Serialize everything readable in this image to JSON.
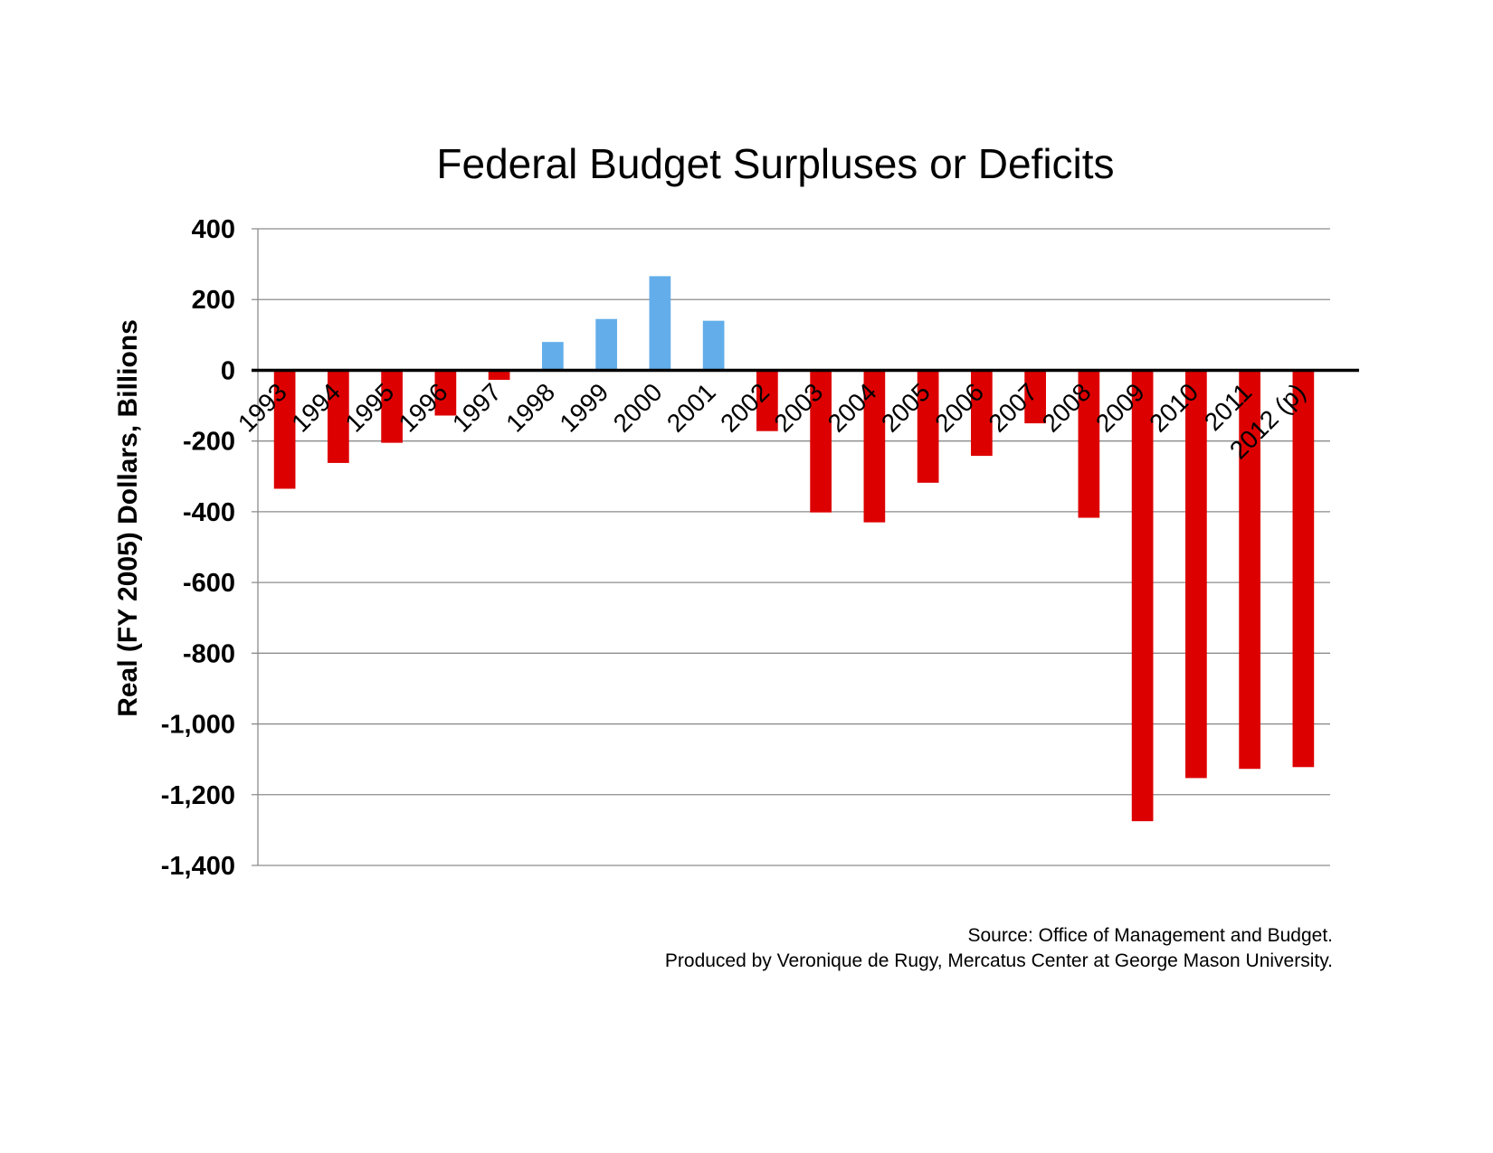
{
  "chart_data": {
    "type": "bar",
    "title": "Federal Budget Surpluses or Deficits",
    "xlabel": "",
    "ylabel": "Real (FY 2005) Dollars, Billions",
    "ylim": [
      -1400,
      400
    ],
    "ytick_step": 200,
    "yticks": [
      "400",
      "200",
      "0",
      "-200",
      "-400",
      "-600",
      "-800",
      "-1,000",
      "-1,200",
      "-1,400"
    ],
    "grid": true,
    "legend": "none",
    "categories": [
      "1993",
      "1994",
      "1995",
      "1996",
      "1997",
      "1998",
      "1999",
      "2000",
      "2001",
      "2002",
      "2003",
      "2004",
      "2005",
      "2006",
      "2007",
      "2008",
      "2009",
      "2010",
      "2011",
      "2012 (p)"
    ],
    "values": [
      -335,
      -262,
      -205,
      -128,
      -27,
      80,
      145,
      266,
      140,
      -172,
      -402,
      -430,
      -318,
      -242,
      -150,
      -417,
      -1275,
      -1153,
      -1127,
      -1122
    ],
    "colors": {
      "surplus": "#63aeea",
      "deficit": "#dd0000"
    }
  },
  "notes": {
    "source_line": "Source: Office of Management and Budget.",
    "credit_line": "Produced by Veronique de Rugy, Mercatus Center at George Mason University."
  }
}
